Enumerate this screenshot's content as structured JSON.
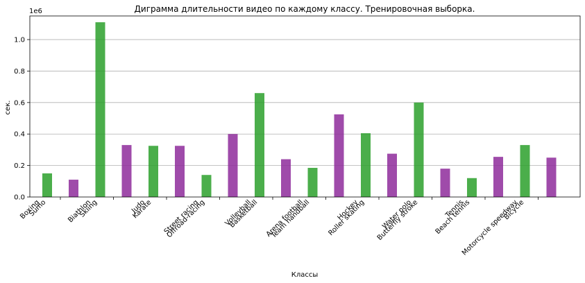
{
  "chart_data": {
    "type": "bar",
    "title": "Диграмма длительности видео по каждому классу. Тренировочная выборка.",
    "xlabel": "Классы",
    "ylabel": "сек.",
    "y_multiplier_label": "1e6",
    "ylim": [
      0,
      1150000
    ],
    "yticks": [
      0,
      200000,
      400000,
      600000,
      800000,
      1000000
    ],
    "ytick_labels": [
      "0.0",
      "0.2",
      "0.4",
      "0.6",
      "0.8",
      "1.0"
    ],
    "grid": "horizontal",
    "colors": {
      "green": "#2ca02c",
      "purple": "#8e2b9b"
    },
    "pairs": [
      {
        "label1": "Boxing",
        "label2": "Sumo",
        "v1": 150000,
        "v2": 110000
      },
      {
        "label1": "Biathlon",
        "label2": "Skiing",
        "v1": 1110000,
        "v2": 330000
      },
      {
        "label1": "Judo",
        "label2": "Karate",
        "v1": 325000,
        "v2": 325000
      },
      {
        "label1": "Street racing",
        "label2": "Offroad-racing",
        "v1": 140000,
        "v2": 400000
      },
      {
        "label1": "Volleyball",
        "label2": "Basketball",
        "v1": 660000,
        "v2": 240000
      },
      {
        "label1": "Arena football",
        "label2": "Team handball",
        "v1": 185000,
        "v2": 525000
      },
      {
        "label1": "Hockey",
        "label2": "Roller skating",
        "v1": 405000,
        "v2": 275000
      },
      {
        "label1": "Water polo",
        "label2": "Butterfly stroke",
        "v1": 600000,
        "v2": 180000
      },
      {
        "label1": "Tennis",
        "label2": "Beach tennis",
        "v1": 120000,
        "v2": 255000
      },
      {
        "label1": "Motorcycle speedway",
        "label2": "Bicycle",
        "v1": 330000,
        "v2": 250000
      }
    ]
  }
}
